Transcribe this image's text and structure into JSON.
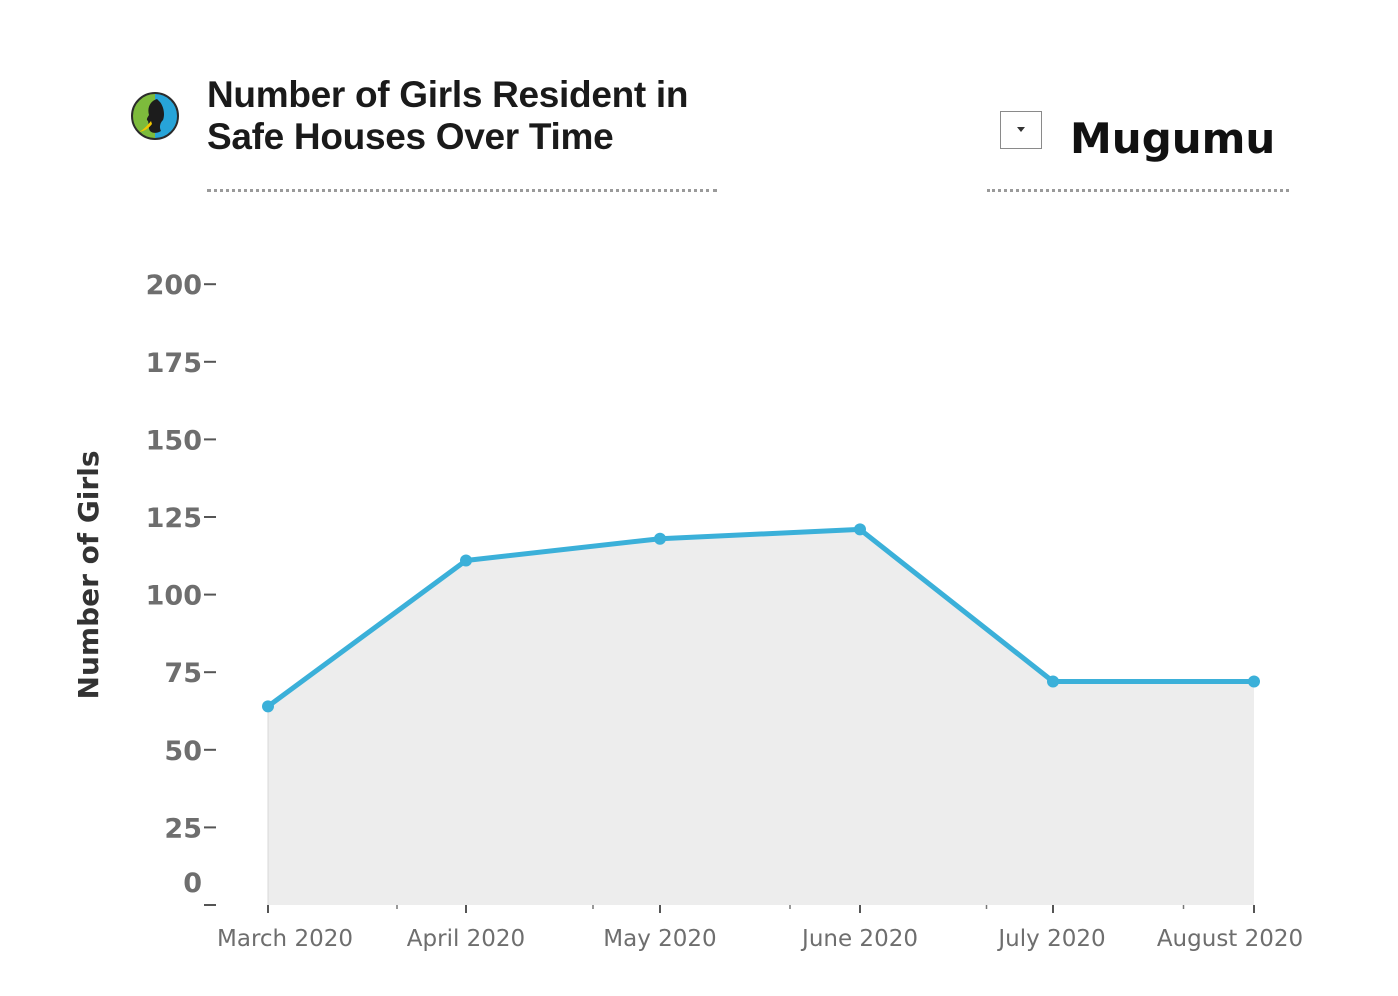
{
  "header": {
    "title_line1": "Number of Girls Resident in",
    "title_line2": "Safe Houses Over Time",
    "logo_icon": "silhouette-logo-icon"
  },
  "filter": {
    "icon": "dropdown-arrow-icon",
    "selected": "Mugumu"
  },
  "chart_data": {
    "type": "area",
    "title": "Number of Girls Resident in Safe Houses Over Time",
    "xlabel": "",
    "ylabel": "Number of Girls",
    "categories": [
      "March 2020",
      "April 2020",
      "May 2020",
      "June 2020",
      "July 2020",
      "August 2020"
    ],
    "series": [
      {
        "values": [
          64,
          111,
          118,
          121,
          72,
          72
        ],
        "color": "#3bb0d9"
      }
    ],
    "ylim": [
      0,
      200
    ],
    "yticks": [
      0,
      25,
      50,
      75,
      100,
      125,
      150,
      175,
      200
    ],
    "area_fill": "#ededed",
    "grid": false,
    "markers": true
  }
}
